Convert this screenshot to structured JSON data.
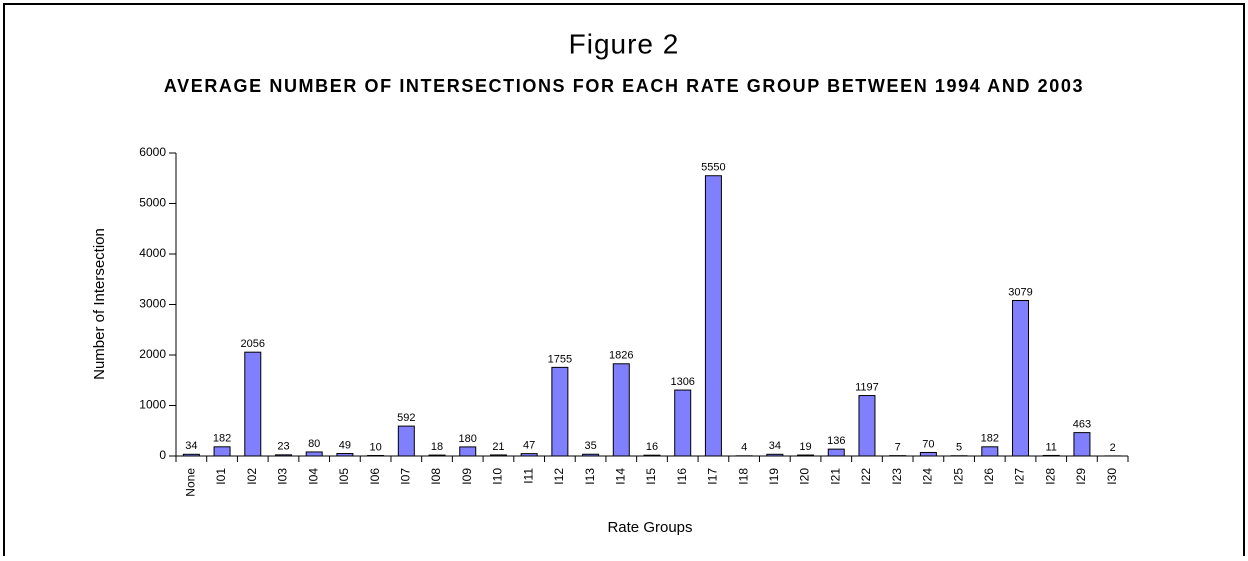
{
  "chart_data": {
    "type": "bar",
    "title": "Figure 2",
    "subtitle": "AVERAGE NUMBER OF INTERSECTIONS FOR EACH RATE GROUP BETWEEN 1994 AND 2003",
    "x_label": "Rate Groups",
    "y_label": "Number of Intersection",
    "categories": [
      "None",
      "I01",
      "I02",
      "I03",
      "I04",
      "I05",
      "I06",
      "I07",
      "I08",
      "I09",
      "I10",
      "I11",
      "I12",
      "I13",
      "I14",
      "I15",
      "I16",
      "I17",
      "I18",
      "I19",
      "I20",
      "I21",
      "I22",
      "I23",
      "I24",
      "I25",
      "I26",
      "I27",
      "I28",
      "I29",
      "I30"
    ],
    "values": [
      34,
      182,
      2056,
      23,
      80,
      49,
      10,
      592,
      18,
      180,
      21,
      47,
      1755,
      35,
      1826,
      16,
      1306,
      5550,
      4,
      34,
      19,
      136,
      1197,
      7,
      70,
      5,
      182,
      3079,
      11,
      463,
      2
    ],
    "color": "#8080ff",
    "ylim": [
      0,
      6000
    ],
    "yticks": [
      0,
      1000,
      2000,
      3000,
      4000,
      5000,
      6000
    ]
  }
}
